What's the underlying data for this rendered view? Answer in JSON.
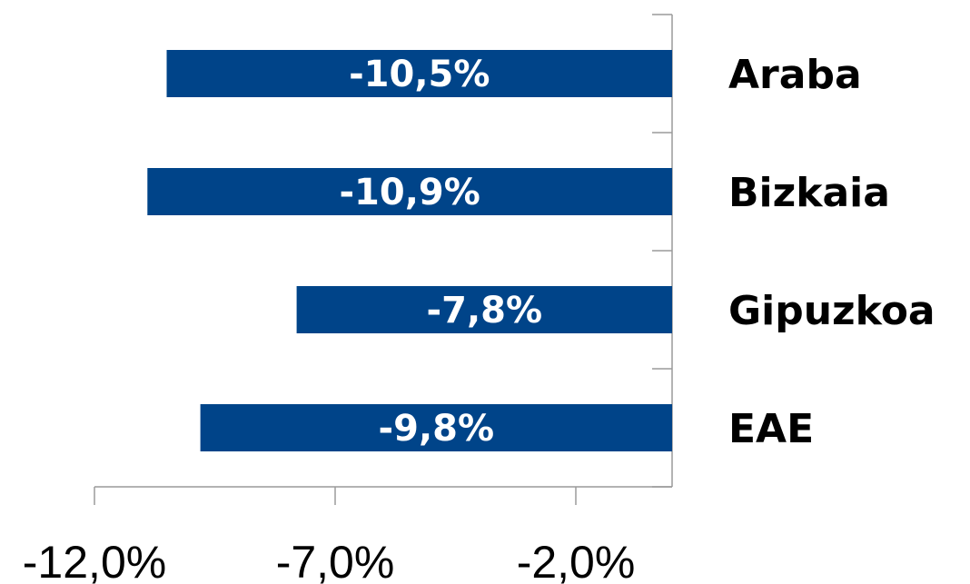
{
  "chart_data": {
    "type": "bar",
    "orientation": "horizontal",
    "categories": [
      "Araba",
      "Bizkaia",
      "Gipuzkoa",
      "EAE"
    ],
    "values": [
      -10.5,
      -10.9,
      -7.8,
      -9.8
    ],
    "value_labels": [
      "-10,5%",
      "-10,9%",
      "-7,8%",
      "-9,8%"
    ],
    "xlim": [
      -12.0,
      0.0
    ],
    "x_ticks": [
      -12.0,
      -7.0,
      -2.0
    ],
    "x_tick_labels": [
      "-12,0%",
      "-7,0%",
      "-2,0%"
    ],
    "title": "",
    "xlabel": "",
    "ylabel": "",
    "grid": false,
    "legend": "none",
    "bar_color": "#004489"
  }
}
